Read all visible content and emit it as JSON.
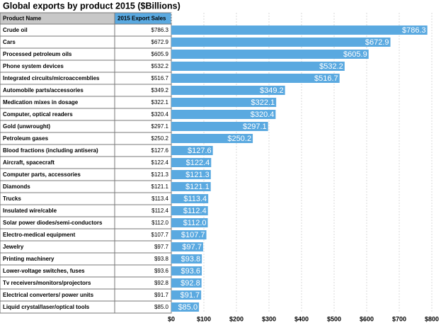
{
  "chart_data": {
    "type": "bar",
    "orientation": "horizontal",
    "title": "Global exports by product 2015 ($Billions)",
    "column_headers": [
      "Product Name",
      "2015 Export Sales"
    ],
    "categories": [
      "Crude oil",
      "Cars",
      "Processed petroleum oils",
      "Phone system devices",
      "Integrated circuits/microaccemblies",
      "Automobile parts/accessories",
      "Medication mixes in dosage",
      "Computer, optical readers",
      "Gold (unwrought)",
      "Petroleum gases",
      "Blood fractions (including antisera)",
      "Aircraft, spacecraft",
      "Computer parts, accessories",
      "Diamonds",
      "Trucks",
      "Insulated wire/cable",
      "Solar power diodes/semi-conductors",
      "Electro-medical equipment",
      "Jewelry",
      "Printing machinery",
      "Lower-voltage switches, fuses",
      "Tv receivers/monitors/projectors",
      "Electrical converters/ power units",
      "Liquid crystal/laser/optical tools"
    ],
    "values": [
      786.3,
      672.9,
      605.9,
      532.2,
      516.7,
      349.2,
      322.1,
      320.4,
      297.1,
      250.2,
      127.6,
      122.4,
      121.3,
      121.1,
      113.4,
      112.4,
      112.0,
      107.7,
      97.7,
      93.8,
      93.6,
      92.8,
      91.7,
      85.0
    ],
    "value_labels": [
      "$786.3",
      "$672.9",
      "$605.9",
      "$532.2",
      "$516.7",
      "$349.2",
      "$322.1",
      "$320.4",
      "$297.1",
      "$250.2",
      "$127.6",
      "$122.4",
      "$121.3",
      "$121.1",
      "$113.4",
      "$112.4",
      "$112.0",
      "$107.7",
      "$97.7",
      "$93.8",
      "$93.6",
      "$92.8",
      "$91.7",
      "$85.0"
    ],
    "color": "#5aa9e0",
    "xlim": [
      0,
      800
    ],
    "xticks": [
      {
        "value": 0,
        "label": "$0"
      },
      {
        "value": 100,
        "label": "$100"
      },
      {
        "value": 200,
        "label": "$200"
      },
      {
        "value": 300,
        "label": "$300"
      },
      {
        "value": 400,
        "label": "$400"
      },
      {
        "value": 500,
        "label": "$500"
      },
      {
        "value": 600,
        "label": "$600"
      },
      {
        "value": 700,
        "label": "$700"
      },
      {
        "value": 800,
        "label": "$800"
      }
    ],
    "grid": true
  }
}
